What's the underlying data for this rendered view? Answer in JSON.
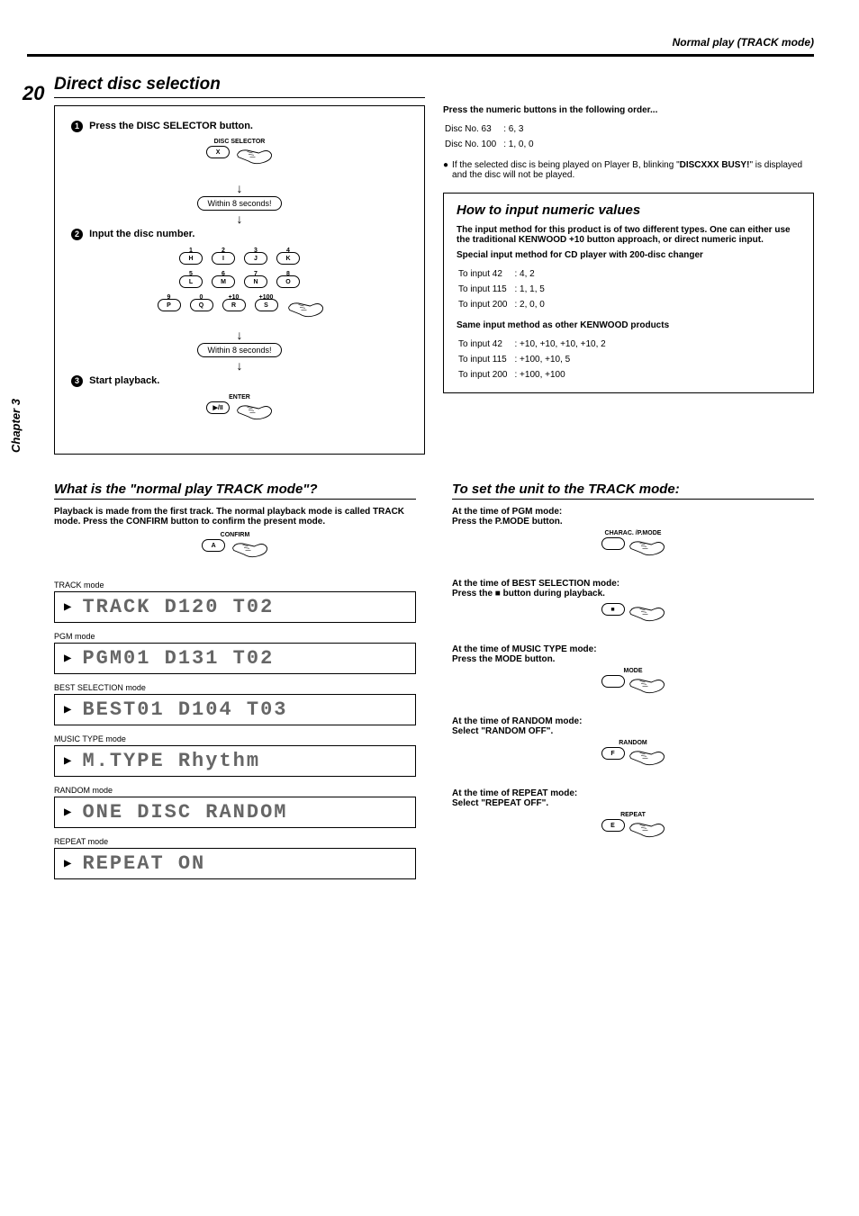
{
  "header": {
    "breadcrumb": "Normal play (TRACK mode)"
  },
  "page_number": "20",
  "chapter": "Chapter 3",
  "direct_disc": {
    "title": "Direct disc selection",
    "step1_label": "Press the DISC SELECTOR button.",
    "selector_over": "DISC SELECTOR",
    "selector_key": "X",
    "within": "Within 8 seconds!",
    "step2_label": "Input the disc number.",
    "keypad": [
      {
        "over": "1",
        "key": "H"
      },
      {
        "over": "2",
        "key": "I"
      },
      {
        "over": "3",
        "key": "J"
      },
      {
        "over": "4",
        "key": "K"
      },
      {
        "over": "5",
        "key": "L"
      },
      {
        "over": "6",
        "key": "M"
      },
      {
        "over": "7",
        "key": "N"
      },
      {
        "over": "8",
        "key": "O"
      },
      {
        "over": "9",
        "key": "P"
      },
      {
        "over": "0",
        "key": "Q"
      },
      {
        "over": "+10",
        "key": "R"
      },
      {
        "over": "+100",
        "key": "S"
      }
    ],
    "step3_label": "Start playback.",
    "enter_over": "ENTER",
    "enter_key": "▶/II"
  },
  "right_top": {
    "order_title": "Press the numeric buttons in the following order...",
    "rows": [
      [
        "Disc No. 63",
        ": 6, 3"
      ],
      [
        "Disc No. 100",
        ": 1, 0, 0"
      ]
    ],
    "note_pre": "If the selected disc is being played on Player B, blinking \"",
    "note_bold": "DISCXXX BUSY!",
    "note_post": "\" is displayed and the disc will not be played."
  },
  "how_input": {
    "title": "How to input numeric values",
    "intro": "The input method for this product is of two different types. One can either use the traditional KENWOOD +10 button approach, or direct numeric input.",
    "h1": "Special input method for CD player with 200-disc changer",
    "t1": [
      [
        "To input 42",
        ": 4, 2"
      ],
      [
        "To input 115",
        ": 1, 1, 5"
      ],
      [
        "To input 200",
        ": 2, 0, 0"
      ]
    ],
    "h2": "Same input method as other KENWOOD products",
    "t2": [
      [
        "To input 42",
        ": +10, +10, +10, +10, 2"
      ],
      [
        "To input 115",
        ": +100, +10, 5"
      ],
      [
        "To input 200",
        ": +100, +100"
      ]
    ]
  },
  "normal_play": {
    "title": "What is the \"normal play TRACK mode\"?",
    "desc": "Playback is made from the first track. The normal playback mode is called TRACK mode. Press the CONFIRM button to confirm the present mode.",
    "confirm_over": "CONFIRM",
    "confirm_key": "A",
    "modes": [
      {
        "label": "TRACK mode",
        "lcd": "TRACK   D120  T02"
      },
      {
        "label": "PGM mode",
        "lcd": "PGM01   D131  T02"
      },
      {
        "label": "BEST SELECTION mode",
        "lcd": "BEST01  D104  T03"
      },
      {
        "label": "MUSIC TYPE mode",
        "lcd": "M.TYPE    Rhythm"
      },
      {
        "label": "RANDOM mode",
        "lcd": "ONE DISC  RANDOM"
      },
      {
        "label": "REPEAT mode",
        "lcd": "   REPEAT  ON"
      }
    ]
  },
  "to_set": {
    "title": "To set the unit to the TRACK mode:",
    "items": [
      {
        "l1": "At the time of PGM mode:",
        "l2": "Press the P.MODE button.",
        "over": "CHARAC. /P.MODE",
        "key": ""
      },
      {
        "l1": "At the time of BEST SELECTION mode:",
        "l2": "Press the ■ button during playback.",
        "over": "",
        "key": "■"
      },
      {
        "l1": "At the time of MUSIC TYPE mode:",
        "l2": "Press the MODE button.",
        "over": "MODE",
        "key": ""
      },
      {
        "l1": "At the time of RANDOM mode:",
        "l2": "Select \"RANDOM OFF\".",
        "over": "RANDOM",
        "key": "F"
      },
      {
        "l1": "At the time of REPEAT mode:",
        "l2": "Select \"REPEAT OFF\".",
        "over": "REPEAT",
        "key": "E"
      }
    ]
  }
}
